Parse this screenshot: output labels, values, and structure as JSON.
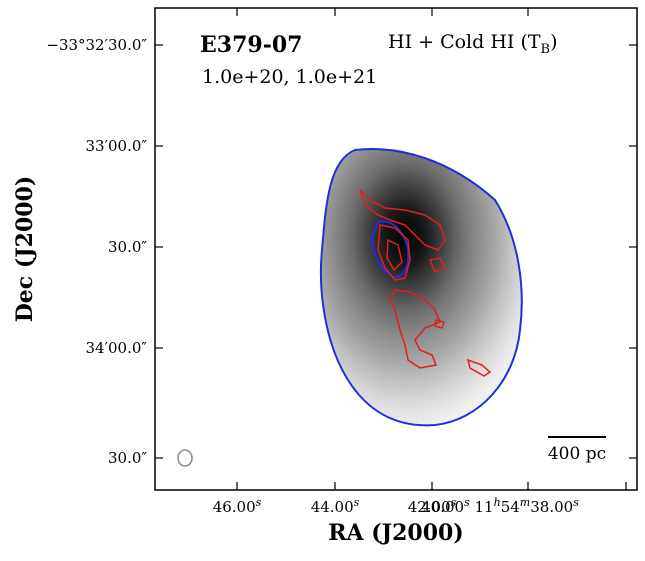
{
  "plot": {
    "object": "E379-07",
    "contour_levels": "1.0e+20, 1.0e+21",
    "map_label": {
      "main": "HI + Cold HI (T",
      "sub": "B",
      "end": ")"
    },
    "x_label": "RA (J2000)",
    "y_label": "Dec (J2000)",
    "scale_bar": "400 pc",
    "x_ticks": [
      [
        {
          "t": "46.00"
        },
        {
          "sup": "s"
        }
      ],
      [
        {
          "t": "44.00"
        },
        {
          "sup": "s"
        }
      ],
      [
        {
          "t": "42.00"
        },
        {
          "sup": "s"
        }
      ],
      [
        {
          "t": "40.00"
        },
        {
          "sup": "s"
        },
        {
          "t": " 11"
        },
        {
          "sup": "h"
        },
        {
          "t": "54"
        },
        {
          "sup": "m"
        },
        {
          "t": "38.00"
        },
        {
          "sup": "s"
        }
      ]
    ],
    "y_ticks": [
      "−33°32′30.0″",
      "33′00.0″",
      "30.0″",
      "34′00.0″",
      "30.0″"
    ]
  }
}
